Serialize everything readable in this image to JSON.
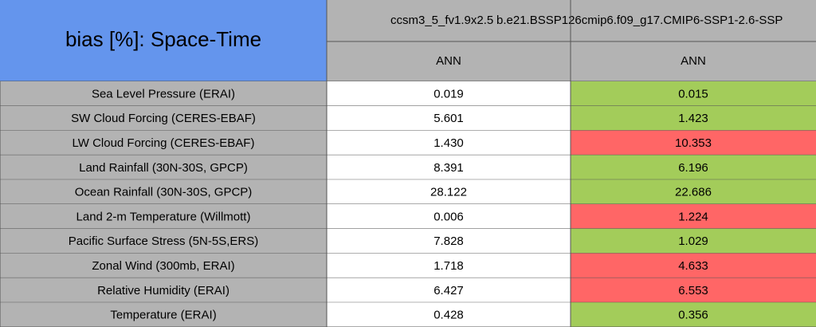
{
  "table": {
    "title": "bias [%]: Space-Time",
    "columns": [
      "ccsm3_5_fv1.9x2.5",
      "b.e21.BSSP126cmip6.f09_g17.CMIP6-SSP1-2.6-SSP"
    ],
    "subcolumns": [
      "ANN",
      "ANN"
    ],
    "rows": [
      [
        "Sea Level Pressure (ERAI)",
        "0.019",
        "0.015"
      ],
      [
        "SW Cloud Forcing (CERES-EBAF)",
        "5.601",
        "1.423"
      ],
      [
        "LW Cloud Forcing (CERES-EBAF)",
        "1.430",
        "10.353"
      ],
      [
        "Land Rainfall (30N-30S, GPCP)",
        "8.391",
        "6.196"
      ],
      [
        "Ocean Rainfall (30N-30S, GPCP)",
        "28.122",
        "22.686"
      ],
      [
        "Land 2-m Temperature (Willmott)",
        "0.006",
        "1.224"
      ],
      [
        "Pacific Surface Stress (5N-5S,ERS)",
        "7.828",
        "1.029"
      ],
      [
        "Zonal Wind (300mb, ERAI)",
        "1.718",
        "4.633"
      ],
      [
        "Relative Humidity (ERAI)",
        "6.427",
        "6.553"
      ],
      [
        "Temperature (ERAI)",
        "0.428",
        "0.356"
      ]
    ],
    "cell_colors": [
      [
        "#b3b3b3",
        "#ffffff",
        "#a3cc5a"
      ],
      [
        "#b3b3b3",
        "#ffffff",
        "#a3cc5a"
      ],
      [
        "#b3b3b3",
        "#ffffff",
        "#ff6666"
      ],
      [
        "#b3b3b3",
        "#ffffff",
        "#a3cc5a"
      ],
      [
        "#b3b3b3",
        "#ffffff",
        "#a3cc5a"
      ],
      [
        "#b3b3b3",
        "#ffffff",
        "#ff6666"
      ],
      [
        "#b3b3b3",
        "#ffffff",
        "#a3cc5a"
      ],
      [
        "#b3b3b3",
        "#ffffff",
        "#ff6666"
      ],
      [
        "#b3b3b3",
        "#ffffff",
        "#ff6666"
      ],
      [
        "#b3b3b3",
        "#ffffff",
        "#a3cc5a"
      ]
    ]
  }
}
